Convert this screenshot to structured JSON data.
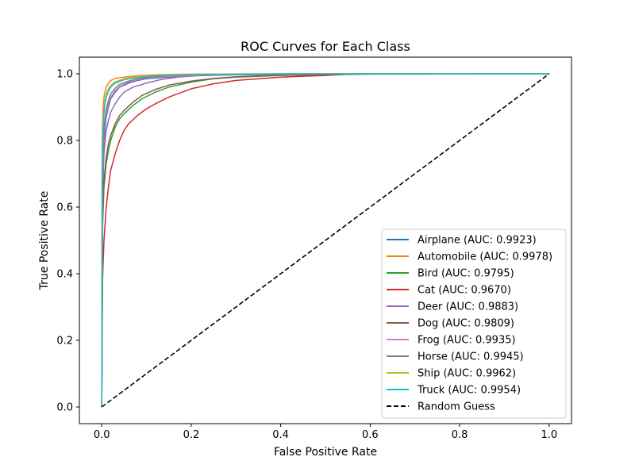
{
  "chart_data": {
    "type": "line",
    "title": "ROC Curves for Each Class",
    "xlabel": "False Positive Rate",
    "ylabel": "True Positive Rate",
    "xlim": [
      -0.05,
      1.05
    ],
    "ylim": [
      -0.05,
      1.05
    ],
    "xticks": [
      0.0,
      0.2,
      0.4,
      0.6,
      0.8,
      1.0
    ],
    "yticks": [
      0.0,
      0.2,
      0.4,
      0.6,
      0.8,
      1.0
    ],
    "xtick_labels": [
      "0.0",
      "0.2",
      "0.4",
      "0.6",
      "0.8",
      "1.0"
    ],
    "ytick_labels": [
      "0.0",
      "0.2",
      "0.4",
      "0.6",
      "0.8",
      "1.0"
    ],
    "grid": false,
    "legend_position": "lower-right",
    "series": [
      {
        "name": "Airplane (AUC: 0.9923)",
        "color": "#1f77b4",
        "x": [
          0,
          0.002,
          0.005,
          0.01,
          0.015,
          0.02,
          0.03,
          0.04,
          0.06,
          0.08,
          0.1,
          0.15,
          0.2,
          0.3,
          0.5,
          1.0
        ],
        "y": [
          0,
          0.62,
          0.8,
          0.87,
          0.9,
          0.925,
          0.945,
          0.96,
          0.972,
          0.98,
          0.985,
          0.99,
          0.994,
          0.997,
          0.999,
          1.0
        ]
      },
      {
        "name": "Automobile (AUC: 0.9978)",
        "color": "#ff7f0e",
        "x": [
          0,
          0.001,
          0.003,
          0.006,
          0.01,
          0.015,
          0.02,
          0.03,
          0.05,
          0.08,
          0.12,
          0.2,
          0.4,
          1.0
        ],
        "y": [
          0,
          0.8,
          0.9,
          0.94,
          0.96,
          0.972,
          0.98,
          0.986,
          0.99,
          0.994,
          0.997,
          0.999,
          1.0,
          1.0
        ]
      },
      {
        "name": "Bird (AUC: 0.9795)",
        "color": "#2ca02c",
        "x": [
          0,
          0.002,
          0.005,
          0.01,
          0.015,
          0.02,
          0.03,
          0.04,
          0.05,
          0.07,
          0.09,
          0.12,
          0.15,
          0.2,
          0.25,
          0.3,
          0.4,
          0.6,
          1.0
        ],
        "y": [
          0,
          0.55,
          0.66,
          0.73,
          0.77,
          0.8,
          0.84,
          0.865,
          0.88,
          0.905,
          0.925,
          0.945,
          0.96,
          0.975,
          0.985,
          0.99,
          0.995,
          0.999,
          1.0
        ]
      },
      {
        "name": "Cat (AUC: 0.9670)",
        "color": "#d62728",
        "x": [
          0,
          0.002,
          0.005,
          0.008,
          0.01,
          0.015,
          0.02,
          0.03,
          0.04,
          0.05,
          0.06,
          0.08,
          0.1,
          0.12,
          0.15,
          0.18,
          0.2,
          0.25,
          0.3,
          0.4,
          0.5,
          0.57,
          1.0
        ],
        "y": [
          0,
          0.39,
          0.5,
          0.56,
          0.6,
          0.66,
          0.71,
          0.76,
          0.8,
          0.83,
          0.85,
          0.875,
          0.895,
          0.91,
          0.93,
          0.945,
          0.955,
          0.97,
          0.98,
          0.99,
          0.995,
          1.0,
          1.0
        ]
      },
      {
        "name": "Deer (AUC: 0.9883)",
        "color": "#9467bd",
        "x": [
          0,
          0.002,
          0.005,
          0.01,
          0.015,
          0.02,
          0.03,
          0.04,
          0.05,
          0.07,
          0.1,
          0.13,
          0.17,
          0.22,
          0.3,
          0.5,
          1.0
        ],
        "y": [
          0,
          0.66,
          0.76,
          0.83,
          0.86,
          0.885,
          0.91,
          0.93,
          0.945,
          0.96,
          0.972,
          0.982,
          0.99,
          0.995,
          0.998,
          1.0,
          1.0
        ]
      },
      {
        "name": "Dog (AUC: 0.9809)",
        "color": "#8c564b",
        "x": [
          0,
          0.002,
          0.005,
          0.01,
          0.015,
          0.02,
          0.03,
          0.04,
          0.05,
          0.07,
          0.09,
          0.12,
          0.15,
          0.2,
          0.25,
          0.3,
          0.4,
          0.6,
          1.0
        ],
        "y": [
          0,
          0.56,
          0.68,
          0.75,
          0.79,
          0.815,
          0.85,
          0.875,
          0.89,
          0.915,
          0.935,
          0.953,
          0.966,
          0.978,
          0.986,
          0.991,
          0.996,
          0.999,
          1.0
        ]
      },
      {
        "name": "Frog (AUC: 0.9935)",
        "color": "#e377c2",
        "x": [
          0,
          0.002,
          0.005,
          0.01,
          0.015,
          0.02,
          0.03,
          0.04,
          0.06,
          0.08,
          0.1,
          0.15,
          0.2,
          0.3,
          0.5,
          1.0
        ],
        "y": [
          0,
          0.7,
          0.82,
          0.88,
          0.91,
          0.93,
          0.95,
          0.962,
          0.975,
          0.982,
          0.987,
          0.992,
          0.995,
          0.998,
          1.0,
          1.0
        ]
      },
      {
        "name": "Horse (AUC: 0.9945)",
        "color": "#7f7f7f",
        "x": [
          0,
          0.002,
          0.005,
          0.01,
          0.015,
          0.02,
          0.03,
          0.04,
          0.06,
          0.08,
          0.1,
          0.15,
          0.2,
          0.3,
          0.5,
          1.0
        ],
        "y": [
          0,
          0.72,
          0.84,
          0.895,
          0.92,
          0.94,
          0.957,
          0.968,
          0.978,
          0.985,
          0.989,
          0.994,
          0.996,
          0.998,
          1.0,
          1.0
        ]
      },
      {
        "name": "Ship (AUC: 0.9962)",
        "color": "#bcbd22",
        "x": [
          0,
          0.001,
          0.003,
          0.006,
          0.01,
          0.015,
          0.02,
          0.03,
          0.05,
          0.08,
          0.12,
          0.2,
          0.4,
          1.0
        ],
        "y": [
          0,
          0.75,
          0.86,
          0.91,
          0.94,
          0.955,
          0.965,
          0.976,
          0.985,
          0.991,
          0.995,
          0.998,
          1.0,
          1.0
        ]
      },
      {
        "name": "Truck (AUC: 0.9954)",
        "color": "#17becf",
        "x": [
          0,
          0.001,
          0.003,
          0.006,
          0.01,
          0.015,
          0.02,
          0.03,
          0.05,
          0.08,
          0.12,
          0.2,
          0.4,
          1.0
        ],
        "y": [
          0,
          0.72,
          0.84,
          0.9,
          0.93,
          0.948,
          0.96,
          0.972,
          0.982,
          0.989,
          0.994,
          0.997,
          1.0,
          1.0
        ]
      },
      {
        "name": "Random Guess",
        "color": "#000000",
        "dashed": true,
        "x": [
          0,
          1.0
        ],
        "y": [
          0,
          1.0
        ]
      }
    ]
  }
}
